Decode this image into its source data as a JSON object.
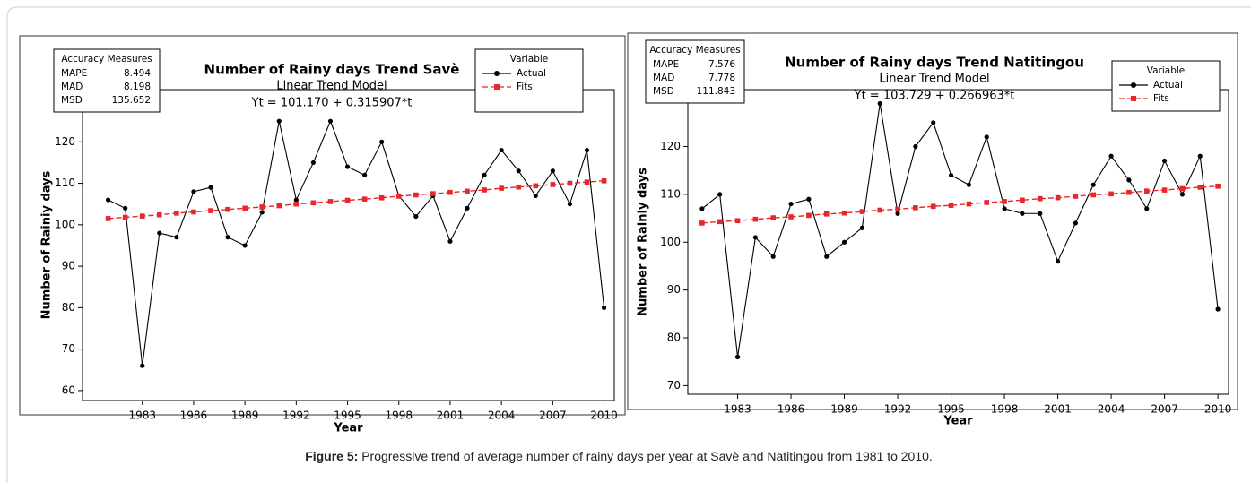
{
  "chart_data": [
    {
      "type": "line",
      "title": "Number of Rainy days Trend Savè",
      "subtitle": "Linear Trend Model",
      "equation": "Yt = 101.170 + 0.315907*t",
      "x_label": "Year",
      "y_label": "Number of Rainiy days",
      "x": [
        1981,
        1982,
        1983,
        1984,
        1985,
        1986,
        1987,
        1988,
        1989,
        1990,
        1991,
        1992,
        1993,
        1994,
        1995,
        1996,
        1997,
        1998,
        1999,
        2000,
        2001,
        2002,
        2003,
        2004,
        2005,
        2006,
        2007,
        2008,
        2009,
        2010
      ],
      "series": [
        {
          "name": "Actual",
          "color": "#000000",
          "marker": "circle",
          "dashed": false,
          "values": [
            106,
            104,
            66,
            98,
            97,
            108,
            109,
            97,
            95,
            103,
            125,
            106,
            115,
            125,
            114,
            112,
            120,
            107,
            102,
            107,
            96,
            104,
            112,
            118,
            113,
            107,
            113,
            105,
            118,
            80
          ]
        },
        {
          "name": "Fits",
          "color": "#e8262b",
          "marker": "square",
          "dashed": true,
          "values": [
            101.5,
            101.8,
            102.1,
            102.4,
            102.8,
            103.1,
            103.4,
            103.7,
            104.0,
            104.3,
            104.6,
            105.0,
            105.3,
            105.6,
            105.9,
            106.2,
            106.5,
            106.9,
            107.2,
            107.5,
            107.8,
            108.1,
            108.4,
            108.8,
            109.1,
            109.4,
            109.7,
            110.0,
            110.3,
            110.6
          ]
        }
      ],
      "xlim": [
        1979.5,
        2010.6
      ],
      "xticks": [
        1983,
        1986,
        1989,
        1992,
        1995,
        1998,
        2001,
        2004,
        2007,
        2010
      ],
      "ylim": [
        57.6,
        132.6
      ],
      "yticks": [
        60,
        70,
        80,
        90,
        100,
        110,
        120,
        130
      ],
      "legend_title": "Variable",
      "accuracy": {
        "title": "Accuracy Measures",
        "rows": [
          [
            "MAPE",
            8.494
          ],
          [
            "MAD",
            8.198
          ],
          [
            "MSD",
            135.652
          ]
        ]
      }
    },
    {
      "type": "line",
      "title": "Number of Rainy days Trend Natitingou",
      "subtitle": "Linear Trend Model",
      "equation": "Yt = 103.729 + 0.266963*t",
      "x_label": "Year",
      "y_label": "Number of Rainiy days",
      "x": [
        1981,
        1982,
        1983,
        1984,
        1985,
        1986,
        1987,
        1988,
        1989,
        1990,
        1991,
        1992,
        1993,
        1994,
        1995,
        1996,
        1997,
        1998,
        1999,
        2000,
        2001,
        2002,
        2003,
        2004,
        2005,
        2006,
        2007,
        2008,
        2009,
        2010
      ],
      "series": [
        {
          "name": "Actual",
          "color": "#000000",
          "marker": "circle",
          "dashed": false,
          "values": [
            107,
            110,
            76,
            101,
            97,
            108,
            109,
            97,
            100,
            103,
            129,
            106,
            120,
            125,
            114,
            112,
            122,
            107,
            106,
            106,
            96,
            104,
            112,
            118,
            113,
            107,
            117,
            110,
            118,
            86
          ]
        },
        {
          "name": "Fits",
          "color": "#e8262b",
          "marker": "square",
          "dashed": true,
          "values": [
            104.0,
            104.3,
            104.5,
            104.8,
            105.1,
            105.3,
            105.6,
            105.9,
            106.1,
            106.4,
            106.7,
            106.9,
            107.2,
            107.5,
            107.7,
            108.0,
            108.3,
            108.5,
            108.8,
            109.1,
            109.3,
            109.6,
            109.9,
            110.1,
            110.4,
            110.7,
            110.9,
            111.2,
            111.5,
            111.7
          ]
        }
      ],
      "xlim": [
        1980.2,
        2010.6
      ],
      "xticks": [
        1983,
        1986,
        1989,
        1992,
        1995,
        1998,
        2001,
        2004,
        2007,
        2010
      ],
      "ylim": [
        68.2,
        131.9
      ],
      "yticks": [
        70,
        80,
        90,
        100,
        110,
        120,
        130
      ],
      "legend_title": "Variable",
      "accuracy": {
        "title": "Accuracy Measures",
        "rows": [
          [
            "MAPE",
            7.576
          ],
          [
            "MAD",
            7.778
          ],
          [
            "MSD",
            111.843
          ]
        ]
      }
    }
  ],
  "caption": {
    "label": "Figure 5:",
    "text": " Progressive trend of average number of rainy days per year at Savè and Natitingou from 1981 to 2010."
  }
}
